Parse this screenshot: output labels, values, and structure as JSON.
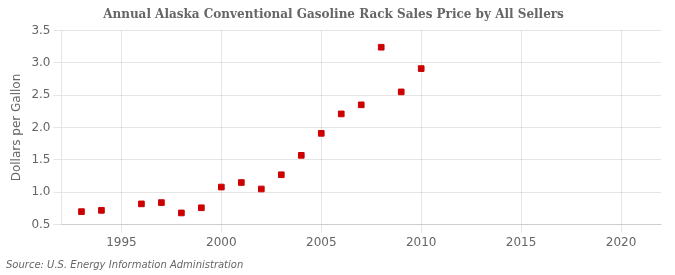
{
  "chart_data": {
    "type": "scatter",
    "title": "Annual Alaska Conventional Gasoline Rack Sales Price by All Sellers",
    "ylabel": "Dollars per Gallon",
    "annotations": [
      "Source: U.S. Energy Information Administration"
    ],
    "x": [
      1993,
      1994,
      1996,
      1997,
      1998,
      1999,
      2000,
      2001,
      2002,
      2003,
      2004,
      2005,
      2006,
      2007,
      2008,
      2009,
      2010
    ],
    "values": [
      0.7,
      0.72,
      0.82,
      0.84,
      0.68,
      0.76,
      1.08,
      1.15,
      1.05,
      1.27,
      1.57,
      1.91,
      2.21,
      2.35,
      3.24,
      2.55,
      2.91
    ],
    "color": "#cc0000",
    "marker": "square",
    "xlim": [
      1992,
      2022
    ],
    "ylim": [
      0.5,
      3.5
    ],
    "xticks": [
      1995,
      2000,
      2005,
      2010,
      2015,
      2020
    ],
    "yticks": [
      0.5,
      {
        "value": 1.0,
        "label": "1.0"
      },
      1.5,
      {
        "value": 2.0,
        "label": "2.0"
      },
      2.5,
      {
        "value": 3.0,
        "label": "3.0"
      },
      3.5
    ],
    "grid": true
  }
}
